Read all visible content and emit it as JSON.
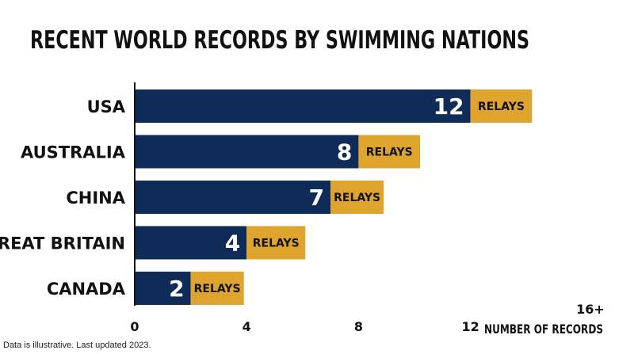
{
  "colors": {
    "bar": "#0f2b57",
    "relay": "#dea42e",
    "text": "#111111",
    "background": "#ffffff"
  },
  "footnote": "Data is illustrative. Last updated 2023.",
  "chart_data": {
    "type": "bar",
    "orientation": "horizontal",
    "stacked": true,
    "title": "RECENT WORLD RECORDS BY SWIMMING NATIONS",
    "xlabel": "NUMBER OF RECORDS",
    "ylabel": "",
    "categories": [
      "USA",
      "AUSTRALIA",
      "CHINA",
      "GREAT BRITAIN",
      "CANADA"
    ],
    "series": [
      {
        "values": [
          12,
          8,
          7,
          4,
          2
        ],
        "data_labels": [
          "12",
          "8",
          "7",
          "4",
          "2"
        ]
      },
      {
        "values": [
          2.2,
          2.2,
          1.9,
          2.1,
          1.9
        ],
        "data_labels": [
          "RELAYS",
          "RELAYS",
          "RELAYS",
          "RELAYS",
          "RELAYS"
        ]
      }
    ],
    "xlim": [
      0,
      16
    ],
    "xticks": [
      0,
      4,
      8,
      12
    ],
    "xtick_labels": [
      "0",
      "4",
      "8",
      "12"
    ],
    "axis_end_label": "16+",
    "grid": false,
    "legend": "none"
  }
}
